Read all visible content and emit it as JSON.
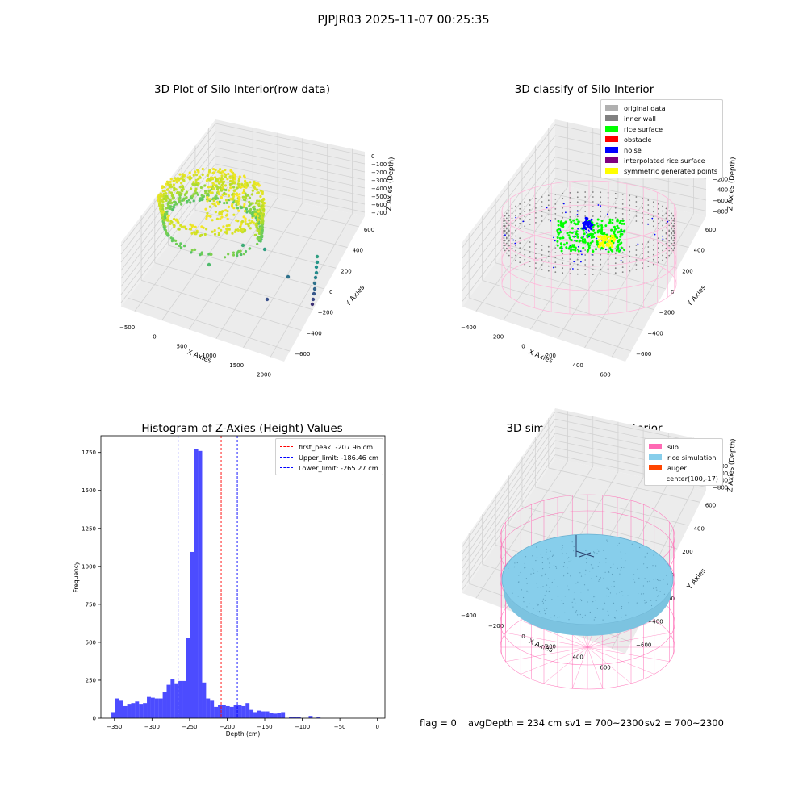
{
  "suptitle": "PJPJR03 2025-11-07 00:25:35",
  "footer": {
    "flag": "flag = 0",
    "avg": "avgDepth = 234 cm",
    "sv1": "sv1 = 700~2300",
    "sv2": "sv2 = 700~2300"
  },
  "colors": {
    "viridis": [
      "#440154",
      "#3b528b",
      "#21918c",
      "#5ec962",
      "#bddf26",
      "#fde725"
    ],
    "silo_pink": "#ff69b4",
    "rice_blue": "#87ceeb",
    "auger": "#ff4500",
    "hist_bar": "#0000ff",
    "peak_line": "#ff0000",
    "limit_line": "#0000ff"
  },
  "chart_data": [
    {
      "type": "scatter",
      "title": "3D Plot of Silo Interior(row data)",
      "xlabel": "X Axies",
      "ylabel": "Y Axies",
      "zlabel": "Z Axies (Depth)",
      "xticks": [
        "−500",
        "0",
        "500",
        "1000",
        "1500",
        "2000"
      ],
      "yticks": [
        "−600",
        "−400",
        "−200",
        "0",
        "200",
        "400",
        "600"
      ],
      "zticks": [
        "0",
        "−100",
        "−200",
        "−300",
        "−400",
        "−500",
        "−600",
        "−700"
      ],
      "colormap": "viridis"
    },
    {
      "type": "scatter",
      "title": "3D classify of Silo Interior",
      "xlabel": "X Axies",
      "ylabel": "Y Axies",
      "zlabel": "Z Axies (Depth)",
      "xticks": [
        "−400",
        "−200",
        "0",
        "200",
        "400",
        "600"
      ],
      "yticks": [
        "−600",
        "−400",
        "−200",
        "0",
        "200",
        "400",
        "600"
      ],
      "zticks": [
        "200",
        "0",
        "−200",
        "−400",
        "−600",
        "−800"
      ],
      "legend": [
        {
          "label": "original data",
          "color": "#b0b0b0"
        },
        {
          "label": "inner wall",
          "color": "#808080"
        },
        {
          "label": "rice surface",
          "color": "#00ff00"
        },
        {
          "label": "obstacle",
          "color": "#ff0000"
        },
        {
          "label": "noise",
          "color": "#0000ff"
        },
        {
          "label": "interpolated rice surface",
          "color": "#800080"
        },
        {
          "label": "symmetric generated points",
          "color": "#ffff00"
        }
      ],
      "legend_position": "top-right"
    },
    {
      "type": "bar",
      "title": "Histogram of Z-Axies (Height) Values",
      "xlabel": "Depth (cm)",
      "ylabel": "Frequency",
      "xlim": [
        -368,
        10
      ],
      "ylim": [
        0,
        1860
      ],
      "xticks": [
        -350,
        -300,
        -250,
        -200,
        -150,
        -100,
        -50,
        0
      ],
      "yticks": [
        0,
        250,
        500,
        750,
        1000,
        1250,
        1500,
        1750
      ],
      "bin_width": 5.25,
      "bin_start": -354,
      "values": [
        40,
        130,
        115,
        80,
        95,
        100,
        110,
        95,
        100,
        140,
        135,
        130,
        130,
        170,
        220,
        255,
        230,
        245,
        245,
        530,
        1095,
        1770,
        1760,
        235,
        130,
        115,
        75,
        85,
        90,
        80,
        75,
        85,
        85,
        80,
        100,
        55,
        40,
        50,
        45,
        45,
        35,
        30,
        35,
        40,
        0,
        10,
        10,
        10,
        0,
        0,
        15,
        0,
        5
      ],
      "vlines": [
        {
          "label": "first_peak: -207.96 cm",
          "x": -207.96,
          "color": "#ff0000"
        },
        {
          "label": "Upper_limit: -186.46 cm",
          "x": -186.46,
          "color": "#0000ff"
        },
        {
          "label": "Lower_limit: -265.27 cm",
          "x": -265.27,
          "color": "#0000ff"
        }
      ],
      "legend_position": "top-right"
    },
    {
      "type": "scatter",
      "title": "3D simulation of Silo Interior",
      "xlabel": "X Axies",
      "ylabel": "Y Axies",
      "zlabel": "Z Axies (Depth)",
      "xticks": [
        "−400",
        "−200",
        "0",
        "200",
        "400",
        "600"
      ],
      "yticks": [
        "−600",
        "−400",
        "−200",
        "0",
        "200",
        "400",
        "600"
      ],
      "zticks": [
        "400",
        "200",
        "0",
        "−200",
        "−400",
        "−600",
        "−800"
      ],
      "legend": [
        {
          "label": "silo",
          "color": "#ff69b4"
        },
        {
          "label": "rice simulation",
          "color": "#87ceeb"
        },
        {
          "label": "auger",
          "color": "#ff4500"
        },
        {
          "label": "center(100,-17)",
          "color": "none"
        }
      ],
      "legend_position": "top-right"
    }
  ]
}
